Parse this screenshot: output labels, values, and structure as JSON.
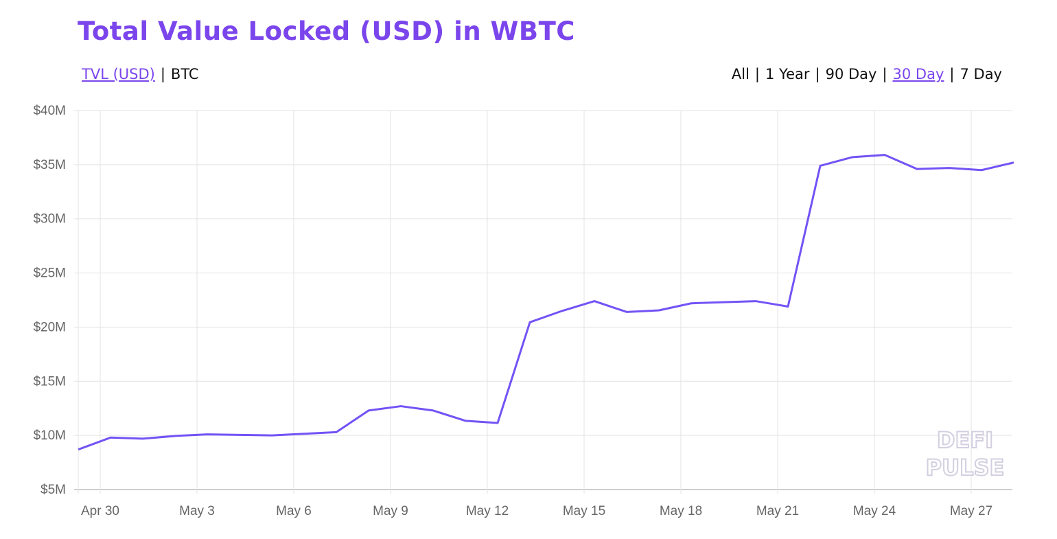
{
  "header": {
    "title": "Total Value Locked (USD) in WBTC",
    "metric_links": [
      {
        "label": "TVL (USD)",
        "active": true
      },
      {
        "label": "BTC",
        "active": false
      }
    ],
    "range_links": [
      {
        "label": "All",
        "active": false
      },
      {
        "label": "1 Year",
        "active": false
      },
      {
        "label": "90 Day",
        "active": false
      },
      {
        "label": "30 Day",
        "active": true
      },
      {
        "label": "7 Day",
        "active": false
      }
    ],
    "separator": "|"
  },
  "watermark": {
    "line1": "DEFI",
    "line2": "PULSE"
  },
  "colors": {
    "accent": "#7b45ec",
    "line": "#7353f5",
    "grid": "#e3e3e3"
  },
  "chart_data": {
    "type": "line",
    "title": "Total Value Locked (USD) in WBTC",
    "xlabel": "",
    "ylabel": "",
    "ylim": [
      5,
      40
    ],
    "y_unit": "$M",
    "y_ticks": [
      "$5M",
      "$10M",
      "$15M",
      "$20M",
      "$25M",
      "$30M",
      "$35M",
      "$40M"
    ],
    "x_ticks": [
      "Apr 30",
      "May 3",
      "May 6",
      "May 9",
      "May 12",
      "May 15",
      "May 18",
      "May 21",
      "May 24",
      "May 27"
    ],
    "grid": true,
    "legend": "none",
    "x": [
      "Apr 29",
      "Apr 30",
      "May 1",
      "May 2",
      "May 3",
      "May 4",
      "May 5",
      "May 6",
      "May 7",
      "May 8",
      "May 9",
      "May 10",
      "May 11",
      "May 12",
      "May 13",
      "May 14",
      "May 15",
      "May 16",
      "May 17",
      "May 18",
      "May 19",
      "May 20",
      "May 21",
      "May 22",
      "May 23",
      "May 24",
      "May 25",
      "May 26",
      "May 27",
      "May 28"
    ],
    "series": [
      {
        "values": [
          8.7,
          9.8,
          9.7,
          9.95,
          10.1,
          10.05,
          10.0,
          10.15,
          10.3,
          12.3,
          12.7,
          12.3,
          11.35,
          11.15,
          20.45,
          21.5,
          22.4,
          21.4,
          21.55,
          22.2,
          22.3,
          22.4,
          21.9,
          34.9,
          35.7,
          35.9,
          34.6,
          34.7,
          34.5,
          35.2
        ]
      }
    ]
  }
}
